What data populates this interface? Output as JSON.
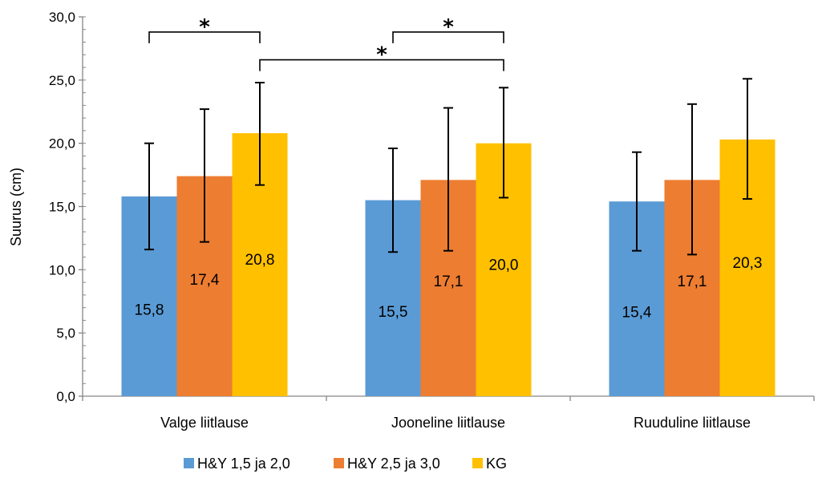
{
  "chart_data": {
    "type": "bar",
    "categories": [
      "Valge liitlause",
      "Jooneline liitlause",
      "Ruuduline liitlause"
    ],
    "series": [
      {
        "name": "H&Y 1,5 ja 2,0",
        "color": "#5B9BD5",
        "values": [
          15.8,
          15.5,
          15.4
        ],
        "labels": [
          "15,8",
          "15,5",
          "15,4"
        ],
        "err_low": [
          11.6,
          11.4,
          11.5
        ],
        "err_high": [
          20.0,
          19.6,
          19.3
        ]
      },
      {
        "name": "H&Y 2,5 ja 3,0",
        "color": "#ED7D31",
        "values": [
          17.4,
          17.1,
          17.1
        ],
        "labels": [
          "17,4",
          "17,1",
          "17,1"
        ],
        "err_low": [
          12.2,
          11.5,
          11.2
        ],
        "err_high": [
          22.7,
          22.8,
          23.1
        ]
      },
      {
        "name": "KG",
        "color": "#FFC000",
        "values": [
          20.8,
          20.0,
          20.3
        ],
        "labels": [
          "20,8",
          "20,0",
          "20,3"
        ],
        "err_low": [
          16.7,
          15.7,
          15.6
        ],
        "err_high": [
          24.8,
          24.4,
          25.1
        ]
      }
    ],
    "ylabel": "Suurus (cm)",
    "ylim": [
      0,
      30
    ],
    "yticks": [
      0,
      5,
      10,
      15,
      20,
      25,
      30
    ],
    "ytick_labels": [
      "0,0",
      "5,0",
      "10,0",
      "15,0",
      "20,0",
      "25,0",
      "30,0"
    ],
    "grid": false,
    "legend_position": "bottom",
    "annotations": [
      {
        "type": "significance",
        "text": "*",
        "from": [
          0,
          0
        ],
        "to": [
          0,
          2
        ],
        "level": 28.8
      },
      {
        "type": "significance",
        "text": "*",
        "from": [
          1,
          0
        ],
        "to": [
          1,
          2
        ],
        "level": 28.8
      },
      {
        "type": "significance",
        "text": "*",
        "from": [
          0,
          2
        ],
        "to": [
          1,
          2
        ],
        "level": 26.6
      }
    ]
  }
}
